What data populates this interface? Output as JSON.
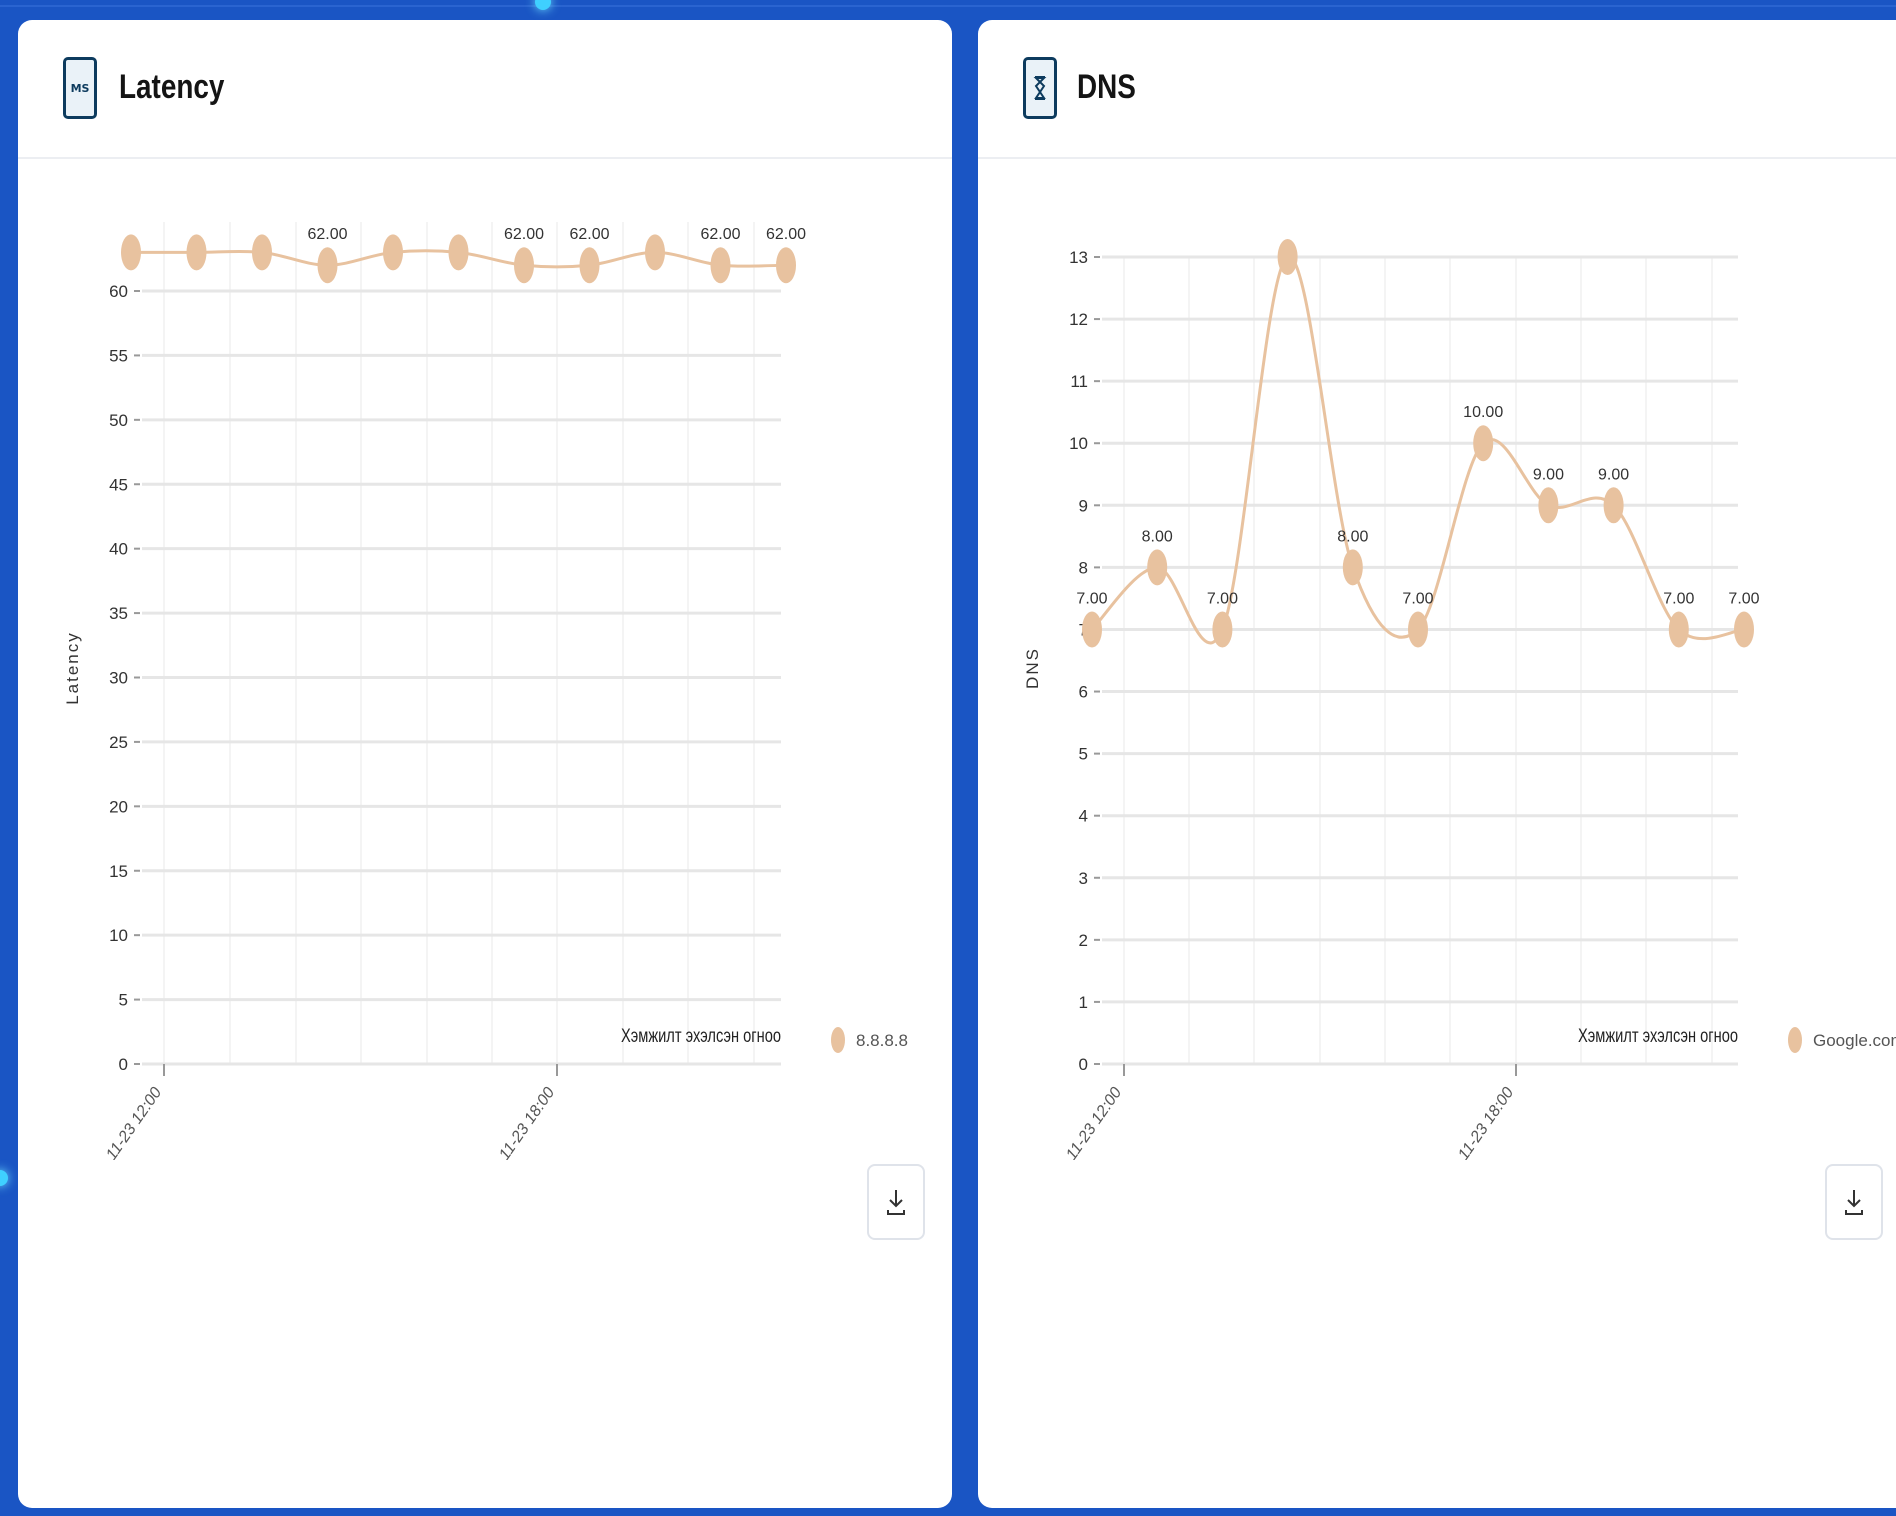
{
  "latency_card": {
    "title": "Latency",
    "icon": "ms-icon",
    "icon_text": "MS",
    "download_icon": "download-icon"
  },
  "dns_card": {
    "title": "DNS",
    "icon": "hourglass-icon",
    "download_icon": "download-icon"
  },
  "colors": {
    "series": "#e8c29f",
    "grid": "#e6e6e6",
    "background": "#1a55c4"
  },
  "chart_data": [
    {
      "id": "latency",
      "type": "line",
      "ylabel": "Latency",
      "xlabel": "Хэмжилт эхэлсэн огноо",
      "x": [
        "11-23 12:00",
        "11-23 13:00",
        "11-23 14:00",
        "11-23 15:00",
        "11-23 16:00",
        "11-23 17:00",
        "11-23 18:00",
        "11-23 19:00",
        "11-23 20:00",
        "11-23 21:00",
        "11-23 22:00"
      ],
      "x_tick_labels": [
        "11-23 12:00",
        "11-23 18:00"
      ],
      "ylim": [
        0,
        60
      ],
      "yticks": [
        0,
        5,
        10,
        15,
        20,
        25,
        30,
        35,
        40,
        45,
        50,
        55,
        60
      ],
      "series": [
        {
          "name": "8.8.8.8",
          "values": [
            63,
            63,
            63,
            62,
            63,
            63,
            62,
            62,
            63,
            62,
            62
          ],
          "data_labels": [
            "",
            "",
            "",
            "62.00",
            "",
            "",
            "62.00",
            "62.00",
            "",
            "62.00",
            "62.00"
          ]
        }
      ],
      "grid": true,
      "legend_position": "bottom-right"
    },
    {
      "id": "dns",
      "type": "line",
      "ylabel": "DNS",
      "xlabel": "Хэмжилт эхэлсэн огноо",
      "x": [
        "11-23 11:30",
        "11-23 12:30",
        "11-23 13:30",
        "11-23 14:30",
        "11-23 15:30",
        "11-23 16:30",
        "11-23 17:30",
        "11-23 18:30",
        "11-23 19:30",
        "11-23 20:30",
        "11-23 21:30"
      ],
      "x_tick_labels": [
        "11-23 12:00",
        "11-23 18:00"
      ],
      "ylim": [
        0,
        13
      ],
      "yticks": [
        0,
        1,
        2,
        3,
        4,
        5,
        6,
        7,
        8,
        9,
        10,
        11,
        12,
        13
      ],
      "series": [
        {
          "name": "Google.com",
          "values": [
            7,
            8,
            7,
            13,
            8,
            7,
            10,
            9,
            9,
            7,
            7
          ],
          "data_labels": [
            "7.00",
            "8.00",
            "7.00",
            "",
            "8.00",
            "7.00",
            "10.00",
            "9.00",
            "9.00",
            "7.00",
            "7.00"
          ]
        }
      ],
      "grid": true,
      "legend_position": "bottom-right"
    }
  ]
}
